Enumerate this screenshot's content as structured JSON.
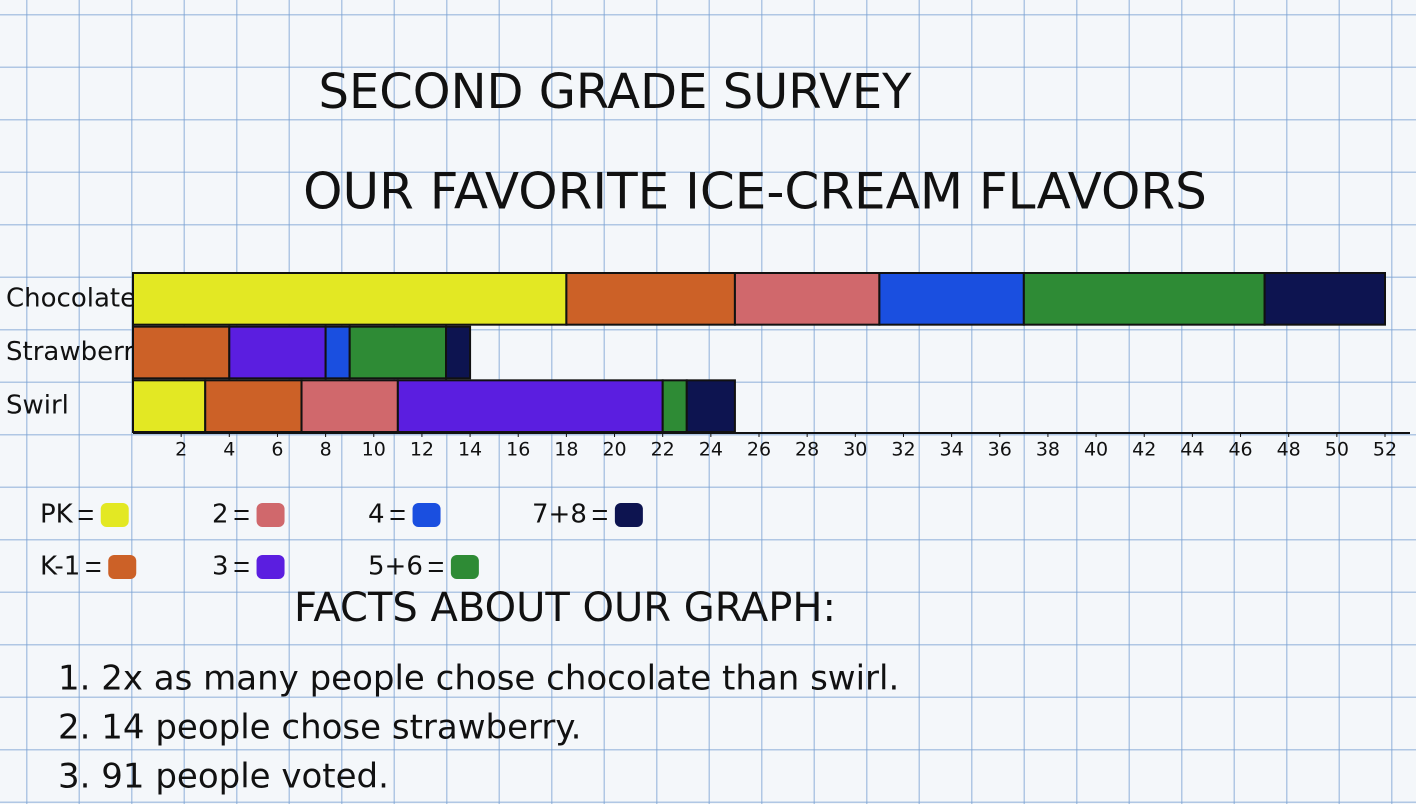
{
  "chart_data": {
    "type": "stacked-bar-horizontal",
    "title": "SECOND GRADE SURVEY",
    "subtitle": "OUR FAVORITE ICE-CREAM FLAVORS",
    "categories": [
      "Chocolate",
      "Strawberry",
      "Swirl"
    ],
    "series": [
      {
        "name": "PK",
        "color": "#e3e823",
        "values": [
          18,
          0,
          3
        ]
      },
      {
        "name": "K-1",
        "color": "#cc6127",
        "values": [
          7,
          4,
          4
        ]
      },
      {
        "name": "2",
        "color": "#d0686c",
        "values": [
          6,
          0,
          4
        ]
      },
      {
        "name": "3",
        "color": "#5b1ee0",
        "values": [
          0,
          4,
          11
        ]
      },
      {
        "name": "4",
        "color": "#1a4fe0",
        "values": [
          6,
          1,
          0
        ]
      },
      {
        "name": "5+6",
        "color": "#2e8b35",
        "values": [
          10,
          4,
          1
        ]
      },
      {
        "name": "7+8",
        "color": "#0d1450",
        "values": [
          5,
          1,
          2
        ]
      }
    ],
    "xlim": [
      0,
      52
    ],
    "xticks": [
      2,
      4,
      6,
      8,
      10,
      12,
      14,
      16,
      18,
      20,
      22,
      24,
      26,
      28,
      30,
      32,
      34,
      36,
      38,
      40,
      42,
      44,
      46,
      48,
      50,
      52
    ],
    "facts_title": "FACTS ABOUT OUR GRAPH:",
    "facts": [
      "1. 2x as many people chose chocolate than swirl.",
      "2. 14 people chose strawberry.",
      "3. 91 people voted."
    ]
  }
}
